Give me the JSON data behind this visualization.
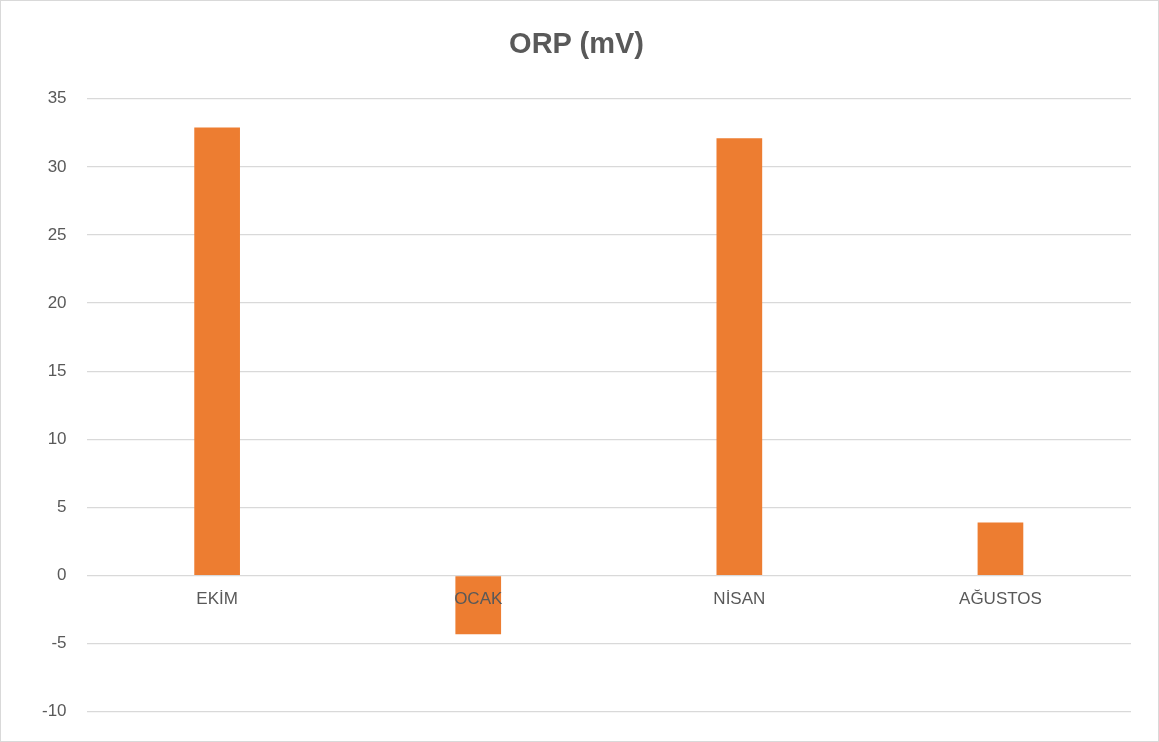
{
  "chart_data": {
    "type": "bar",
    "title": "ORP (mV)",
    "categories": [
      "EKİM",
      "OCAK",
      "NİSAN",
      "AĞUSTOS"
    ],
    "values": [
      32.9,
      -4.3,
      32.1,
      3.9
    ],
    "color": "#ed7d31",
    "ylim": [
      -10,
      35
    ],
    "yticks": [
      -10,
      -5,
      0,
      5,
      10,
      15,
      20,
      25,
      30,
      35
    ],
    "grid": "y",
    "legend": false
  }
}
